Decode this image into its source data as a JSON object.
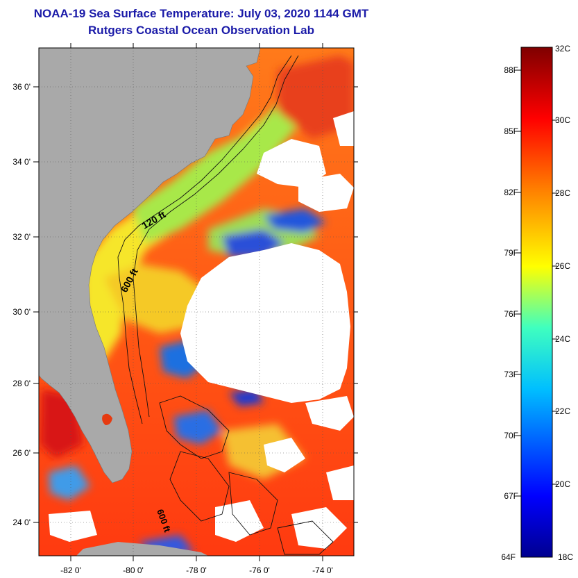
{
  "header": {
    "title": "NOAA-19 Sea Surface Temperature:  July 03, 2020 1144 GMT",
    "subtitle": "Rutgers Coastal Ocean Observation Lab"
  },
  "map": {
    "lat_labels": [
      "36 0'",
      "34 0'",
      "32 0'",
      "30 0'",
      "28 0'",
      "26 0'",
      "24 0'"
    ],
    "lon_labels": [
      "-82 0'",
      "-80 0'",
      "-78 0'",
      "-76 0'",
      "-74 0'"
    ],
    "lat_range": [
      23,
      37.1
    ],
    "lon_range": [
      -83,
      -73
    ],
    "contour_labels": [
      "120 ft",
      "600 ft",
      "600 ft"
    ],
    "colors": {
      "land": "#a9a9a9",
      "cloud": "#ffffff",
      "grid": "#555555"
    }
  },
  "colorbar": {
    "celsius_labels": [
      "32C",
      "30C",
      "28C",
      "26C",
      "24C",
      "22C",
      "20C",
      "18C"
    ],
    "fahrenheit_labels": [
      "88F",
      "85F",
      "82F",
      "79F",
      "76F",
      "73F",
      "70F",
      "67F",
      "64F"
    ],
    "range_c": [
      18,
      32
    ],
    "colors": [
      "#00008f",
      "#0000ff",
      "#00bfff",
      "#3fffbf",
      "#ffff00",
      "#ff8000",
      "#ff0000",
      "#7f0000"
    ]
  }
}
